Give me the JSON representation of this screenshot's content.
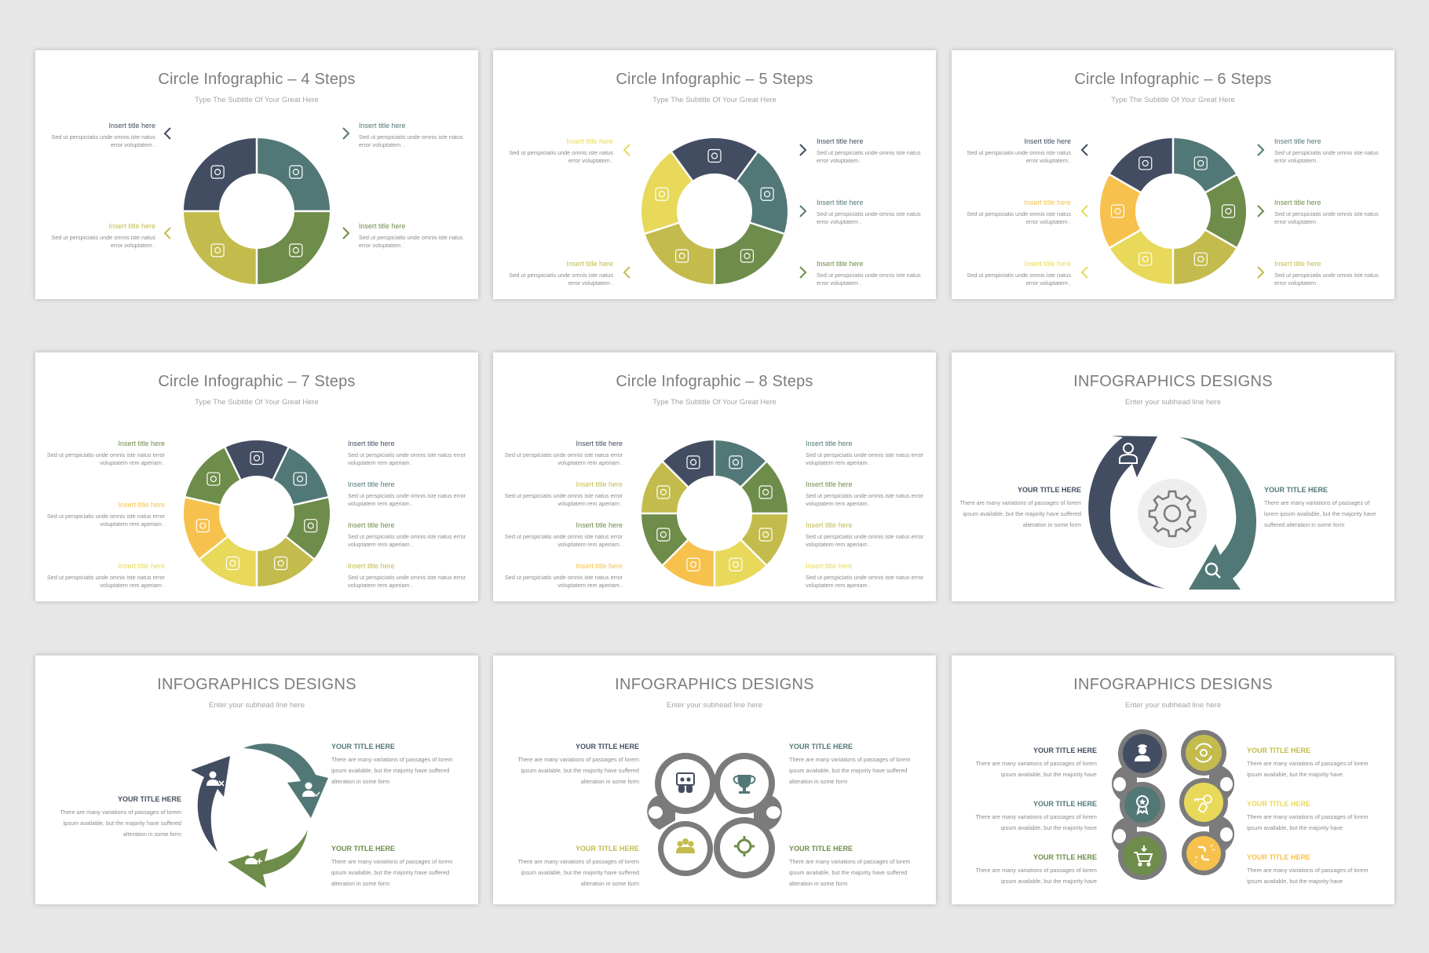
{
  "palette": {
    "navy": "#434d62",
    "teal": "#517876",
    "green": "#6e8c4a",
    "khaki": "#c3bb4c",
    "yellow": "#e8d95a",
    "orange": "#f7c14d",
    "gray": "#7b7b7b",
    "background": "#e8e7e8"
  },
  "slides": [
    {
      "title": "Circle Infographic – 4 Steps",
      "subtitle": "Type The Subtitle Of Your Great Here",
      "items": [
        {
          "title": "Insert title here",
          "body": "Sed ut perspiciatis unde omnis iste natus error voluptatem .",
          "color": "#434d62",
          "side": "left",
          "icon": "coins-dollar-icon"
        },
        {
          "title": "Insert title here",
          "body": "Sed ut perspiciatis unde omnis iste natus error voluptatem .",
          "color": "#517876",
          "side": "right",
          "icon": "brain-bulb-icon"
        },
        {
          "title": "Insert title here",
          "body": "Sed ut perspiciatis unde omnis iste natus error voluptatem .",
          "color": "#6e8c4a",
          "side": "right",
          "icon": "laptop-search-icon"
        },
        {
          "title": "Insert title here",
          "body": "Sed ut perspiciatis unde omnis iste natus error voluptatem .",
          "color": "#c3bb4c",
          "side": "left",
          "icon": "team-idea-icon"
        }
      ]
    },
    {
      "title": "Circle Infographic – 5 Steps",
      "subtitle": "Type The Subtitle Of Your Great Here",
      "items": [
        {
          "title": "Insert title here",
          "body": "Sed ut perspiciatis unde omnis iste natus error voluptatem .",
          "color": "#434d62",
          "side": "right",
          "icon": "monitor-gear-icon"
        },
        {
          "title": "Insert title here",
          "body": "Sed ut perspiciatis unde omnis iste natus error voluptatem .",
          "color": "#517876",
          "side": "right",
          "icon": "rocket-icon"
        },
        {
          "title": "Insert title here",
          "body": "Sed ut perspiciatis unde omnis iste natus error voluptatem .",
          "color": "#6e8c4a",
          "side": "right",
          "icon": "head-gears-icon"
        },
        {
          "title": "Insert title here",
          "body": "Sed ut perspiciatis unde omnis iste natus error voluptatem .",
          "color": "#c3bb4c",
          "side": "left",
          "icon": "presentation-icon"
        },
        {
          "title": "Insert title here",
          "body": "Sed ut perspiciatis unde omnis iste natus error voluptatem .",
          "color": "#e8d95a",
          "side": "left",
          "icon": "lightbulb-icon"
        }
      ]
    },
    {
      "title": "Circle Infographic – 6 Steps",
      "subtitle": "Type The Subtitle Of Your Great Here",
      "items": [
        {
          "title": "Insert title here",
          "body": "Sed ut perspiciatis unde omnis iste natus error voluptatem .",
          "color": "#517876",
          "side": "right",
          "icon": "rocket-icon"
        },
        {
          "title": "Insert title here",
          "body": "Sed ut perspiciatis unde omnis iste natus error voluptatem .",
          "color": "#6e8c4a",
          "side": "right",
          "icon": "cart-icon"
        },
        {
          "title": "Insert title here",
          "body": "Sed ut perspiciatis unde omnis iste natus error voluptatem .",
          "color": "#c3bb4c",
          "side": "right",
          "icon": "paper-plane-icon"
        },
        {
          "title": "Insert title here",
          "body": "Sed ut perspiciatis unde omnis iste natus error voluptatem .",
          "color": "#e8d95a",
          "side": "left",
          "icon": "chain-link-icon"
        },
        {
          "title": "Insert title here",
          "body": "Sed ut perspiciatis unde omnis iste natus error voluptatem .",
          "color": "#f7c14d",
          "side": "left",
          "icon": "gear-icon"
        },
        {
          "title": "Insert title here",
          "body": "Sed ut perspiciatis unde omnis iste natus error voluptatem .",
          "color": "#434d62",
          "side": "left",
          "icon": "target-icon"
        }
      ]
    },
    {
      "title": "Circle Infographic – 7 Steps",
      "subtitle": "Type The Subtitle Of Your Great Here",
      "items": [
        {
          "title": "Insert title here",
          "body": "Sed ut perspiciatis unde omnis iste natus error voluptatem rem aperiam .",
          "color": "#434d62",
          "side": "right",
          "icon": "document-chart-icon"
        },
        {
          "title": "Insert title here",
          "body": "Sed ut perspiciatis unde omnis iste natus error voluptatem rem aperiam .",
          "color": "#517876",
          "side": "right",
          "icon": "analytics-board-icon"
        },
        {
          "title": "Insert title here",
          "body": "Sed ut perspiciatis unde omnis iste natus error voluptatem rem aperiam .",
          "color": "#6e8c4a",
          "side": "right",
          "icon": "growth-chart-icon"
        },
        {
          "title": "Insert title here",
          "body": "Sed ut perspiciatis unde omnis iste natus error voluptatem rem aperiam .",
          "color": "#c3bb4c",
          "side": "right",
          "icon": "fingerprint-icon"
        },
        {
          "title": "Insert title here",
          "body": "Sed ut perspiciatis unde omnis iste natus error voluptatem rem aperiam .",
          "color": "#e8d95a",
          "side": "left",
          "icon": "mobile-puzzle-icon"
        },
        {
          "title": "Insert title here",
          "body": "Sed ut perspiciatis unde omnis iste natus error voluptatem rem aperiam .",
          "color": "#f7c14d",
          "side": "left",
          "icon": "hand-plant-icon"
        },
        {
          "title": "Insert title here",
          "body": "Sed ut perspiciatis unde omnis iste natus error voluptatem rem aperiam .",
          "color": "#6e8c4a",
          "side": "left",
          "icon": "briefcase-icon"
        }
      ]
    },
    {
      "title": "Circle Infographic – 8 Steps",
      "subtitle": "Type The Subtitle Of Your Great Here",
      "items": [
        {
          "title": "Insert title here",
          "body": "Sed ut perspiciatis unde omnis iste natus error voluptatem rem aperiam .",
          "color": "#517876",
          "side": "right",
          "icon": "laptop-search-icon"
        },
        {
          "title": "Insert title here",
          "body": "Sed ut perspiciatis unde omnis iste natus error voluptatem rem aperiam .",
          "color": "#6e8c4a",
          "side": "right",
          "icon": "wallet-icon"
        },
        {
          "title": "Insert title here",
          "body": "Sed ut perspiciatis unde omnis iste natus error voluptatem rem aperiam .",
          "color": "#c3bb4c",
          "side": "right",
          "icon": "analytics-board-icon"
        },
        {
          "title": "Insert title here",
          "body": "Sed ut perspiciatis unde omnis iste natus error voluptatem rem aperiam .",
          "color": "#e8d95a",
          "side": "right",
          "icon": "hand-plant-icon"
        },
        {
          "title": "Insert title here",
          "body": "Sed ut perspiciatis unde omnis iste natus error voluptatem rem aperiam .",
          "color": "#f7c14d",
          "side": "left",
          "icon": "team-idea-icon"
        },
        {
          "title": "Insert title here",
          "body": "Sed ut perspiciatis unde omnis iste natus error voluptatem rem aperiam .",
          "color": "#6e8c4a",
          "side": "left",
          "icon": "growth-chart-icon"
        },
        {
          "title": "Insert title here",
          "body": "Sed ut perspiciatis unde omnis iste natus error voluptatem rem aperiam .",
          "color": "#c3bb4c",
          "side": "left",
          "icon": "coins-dollar-icon"
        },
        {
          "title": "Insert title here",
          "body": "Sed ut perspiciatis unde omnis iste natus error voluptatem rem aperiam .",
          "color": "#434d62",
          "side": "left",
          "icon": "lightbulb-gear-icon"
        }
      ]
    },
    {
      "title": "INFOGRAPHICS DESIGNS",
      "subtitle": "Enter your subhead line here",
      "center_icon": "gear-icon",
      "items": [
        {
          "title": "YOUR TITLE HERE",
          "body": "There are many variations of passages of lorem ipsum available, but the majority have suffered alteration in some form",
          "color": "#434d62",
          "icon": "user-icon"
        },
        {
          "title": "YOUR TITLE HERE",
          "body": "There are many variations of passages of lorem ipsum available, but the majority have suffered alteration in some form",
          "color": "#517876",
          "icon": "search-icon"
        }
      ]
    },
    {
      "title": "INFOGRAPHICS DESIGNS",
      "subtitle": "Enter your subhead line here",
      "items": [
        {
          "title": "YOUR TITLE HERE",
          "body": "There are many variations of passages of lorem ipsum available, but the majority have suffered alteration in some form",
          "color": "#517876",
          "icon": "user-check-icon"
        },
        {
          "title": "YOUR TITLE HERE",
          "body": "There are many variations of passages of lorem ipsum available, but the majority have suffered alteration in some form",
          "color": "#6e8c4a",
          "icon": "user-add-icon"
        },
        {
          "title": "YOUR TITLE HERE",
          "body": "There are many variations of passages of lorem ipsum available, but the majority have suffered alteration in some form",
          "color": "#434d62",
          "icon": "user-remove-icon"
        }
      ]
    },
    {
      "title": "INFOGRAPHICS DESIGNS",
      "subtitle": "Enter your subhead line here",
      "items": [
        {
          "title": "YOUR TITLE HERE",
          "body": "There are many variations of passages of lorem ipsum available, but the majority have suffered alteration in some form",
          "color": "#434d62",
          "icon": "presenter-board-icon"
        },
        {
          "title": "YOUR TITLE HERE",
          "body": "There are many variations of passages of lorem ipsum available, but the majority have suffered alteration in some form",
          "color": "#517876",
          "icon": "trophy-icon"
        },
        {
          "title": "YOUR TITLE HERE",
          "body": "There are many variations of passages of lorem ipsum available, but the majority have suffered alteration in some form",
          "color": "#c3bb4c",
          "icon": "team-icon"
        },
        {
          "title": "YOUR TITLE HERE",
          "body": "There are many variations of passages of lorem ipsum available, but the majority have suffered alteration in some form",
          "color": "#6e8c4a",
          "icon": "crosshair-icon"
        }
      ]
    },
    {
      "title": "INFOGRAPHICS DESIGNS",
      "subtitle": "Enter your subhead line here",
      "items": [
        {
          "title": "YOUR TITLE HERE",
          "body": "There are many variations of passages of lorem ipsum available, but the majority have",
          "color": "#434d62",
          "icon": "worker-icon"
        },
        {
          "title": "YOUR TITLE HERE",
          "body": "There are many variations of passages of lorem ipsum available, but the majority have",
          "color": "#517876",
          "icon": "award-badge-icon"
        },
        {
          "title": "YOUR TITLE HERE",
          "body": "There are many variations of passages of lorem ipsum available, but the majority have",
          "color": "#6e8c4a",
          "icon": "cart-download-icon"
        },
        {
          "title": "YOUR TITLE HERE",
          "body": "There are many variations of passages of lorem ipsum available, but the majority have",
          "color": "#c3bb4c",
          "icon": "gear-refresh-icon"
        },
        {
          "title": "YOUR TITLE HERE",
          "body": "There are many variations of passages of lorem ipsum available, but the majority have",
          "color": "#e8d95a",
          "icon": "keys-icon"
        },
        {
          "title": "YOUR TITLE HERE",
          "body": "There are many variations of passages of lorem ipsum available, but the majority have",
          "color": "#f7c14d",
          "icon": "broken-link-icon"
        }
      ]
    }
  ]
}
